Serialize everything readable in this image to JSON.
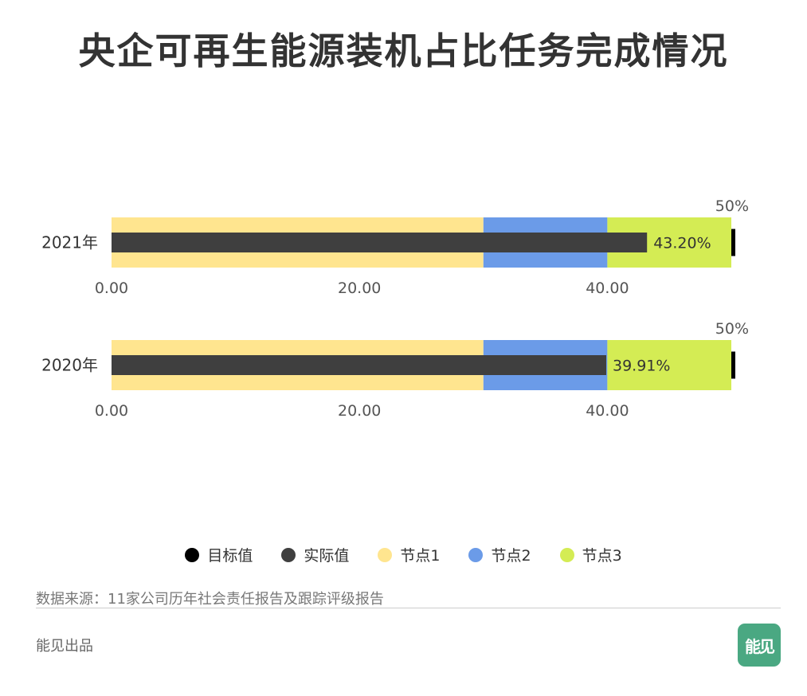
{
  "title": "央企可再生能源装机占比任务完成情况",
  "chart_data": {
    "type": "bar",
    "subtype": "bullet",
    "orientation": "horizontal",
    "categories": [
      "2021年",
      "2020年"
    ],
    "xlim": [
      0,
      50
    ],
    "tick_values": [
      0,
      20,
      40
    ],
    "tick_labels": [
      "0.00",
      "20.00",
      "40.00"
    ],
    "ranges": [
      {
        "name": "节点1",
        "from": 0,
        "to": 30,
        "color": "#FFE58F"
      },
      {
        "name": "节点2",
        "from": 30,
        "to": 40,
        "color": "#6B9BE8"
      },
      {
        "name": "节点3",
        "from": 40,
        "to": 50,
        "color": "#D4EC54"
      }
    ],
    "series": [
      {
        "name": "实际值",
        "values": [
          43.2,
          39.91
        ],
        "labels": [
          "43.20%",
          "39.91%"
        ],
        "color": "#3F3F3F"
      },
      {
        "name": "目标值",
        "values": [
          50,
          50
        ],
        "labels": [
          "50%",
          "50%"
        ],
        "color": "#000000"
      }
    ]
  },
  "legend": [
    {
      "label": "目标值",
      "color": "#000000"
    },
    {
      "label": "实际值",
      "color": "#3F3F3F"
    },
    {
      "label": "节点1",
      "color": "#FFE58F"
    },
    {
      "label": "节点2",
      "color": "#6B9BE8"
    },
    {
      "label": "节点3",
      "color": "#D4EC54"
    }
  ],
  "source": "数据来源：11家公司历年社会责任报告及跟踪评级报告",
  "credit": "能见出品",
  "logo_text": "能见"
}
